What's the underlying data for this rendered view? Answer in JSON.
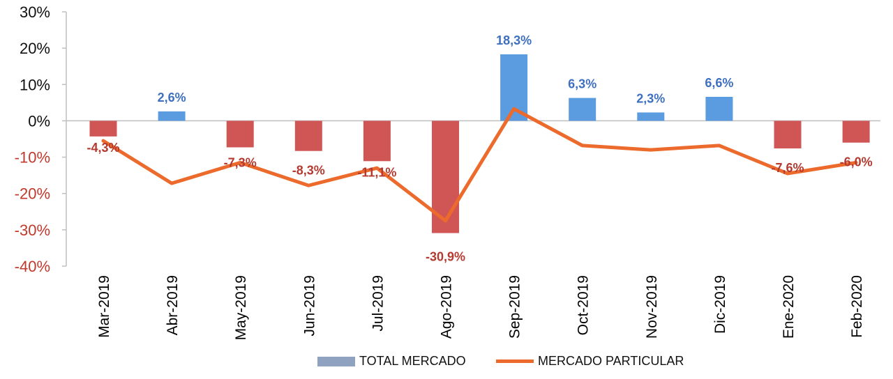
{
  "chart_data": {
    "type": "bar",
    "categories": [
      "Mar-2019",
      "Abr-2019",
      "May-2019",
      "Jun-2019",
      "Jul-2019",
      "Ago-2019",
      "Sep-2019",
      "Oct-2019",
      "Nov-2019",
      "Dic-2019",
      "Ene-2020",
      "Feb-2020"
    ],
    "series": [
      {
        "name": "TOTAL MERCADO",
        "type": "bar",
        "values": [
          -4.3,
          2.6,
          -7.3,
          -8.3,
          -11.1,
          -30.9,
          18.3,
          6.3,
          2.3,
          6.6,
          -7.6,
          -6.0
        ],
        "labels": [
          "-4,3%",
          "2,6%",
          "-7,3%",
          "-8,3%",
          "-11,1%",
          "-30,9%",
          "18,3%",
          "6,3%",
          "2,3%",
          "6,6%",
          "-7,6%",
          "-6,0%"
        ]
      },
      {
        "name": "MERCADO PARTICULAR",
        "type": "line",
        "values": [
          -5.5,
          -17.2,
          -11.5,
          -17.8,
          -13.0,
          -27.5,
          3.3,
          -6.8,
          -8.0,
          -6.8,
          -14.5,
          -11.5
        ]
      }
    ],
    "yticks": [
      "30%",
      "20%",
      "10%",
      "0%",
      "-10%",
      "-20%",
      "-30%",
      "-40%"
    ],
    "ylim": [
      -40,
      30
    ],
    "colors": {
      "positive_bar": "#5b9be0",
      "negative_bar": "#cf5655",
      "line": "#ec6a2c",
      "positive_tick": "#111111",
      "negative_tick": "#c0392b",
      "positive_label": "#3f6fbf",
      "negative_label": "#b43a30",
      "legend_bar": "#8fa2bf"
    }
  }
}
